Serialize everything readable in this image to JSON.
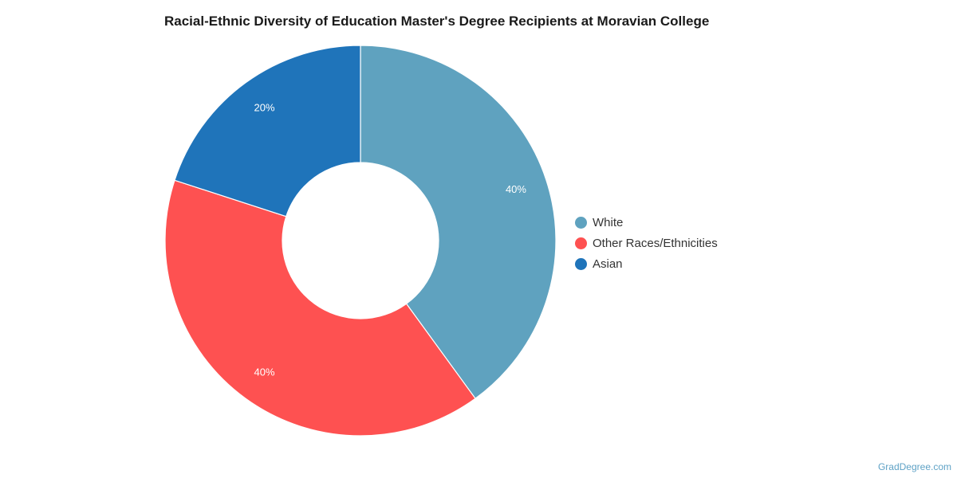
{
  "chart_data": {
    "type": "pie",
    "title": "Racial-Ethnic Diversity of Education Master's Degree Recipients at Moravian College",
    "donut": true,
    "legend_position": "right",
    "slices": [
      {
        "name": "White",
        "value": 40,
        "label": "40%",
        "color": "#5fa2bf"
      },
      {
        "name": "Other Races/Ethnicities",
        "value": 40,
        "label": "40%",
        "color": "#fe5151"
      },
      {
        "name": "Asian",
        "value": 20,
        "label": "20%",
        "color": "#1f74ba"
      }
    ]
  },
  "watermark": "GradDegree.com"
}
